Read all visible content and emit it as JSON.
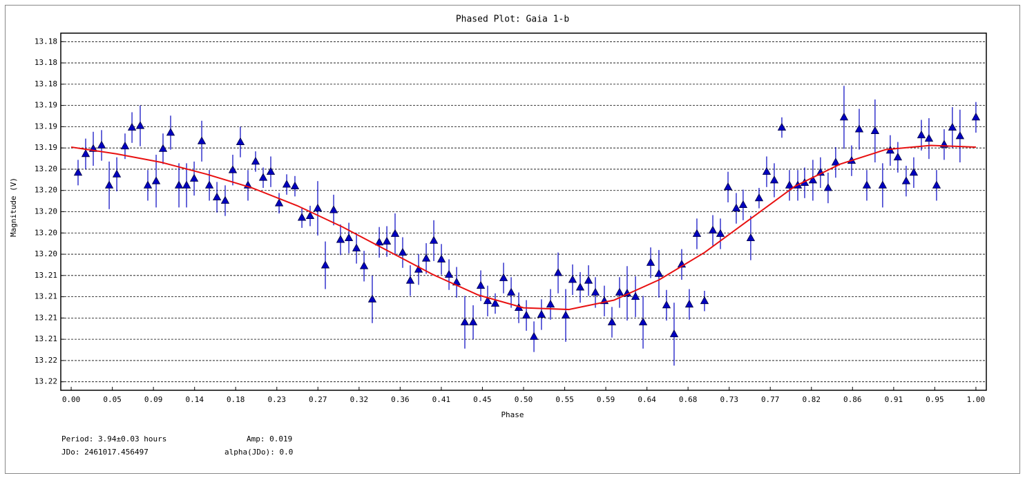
{
  "chart_data": {
    "type": "scatter",
    "title": "Phased Plot: Gaia 1-b",
    "xlabel": "Phase",
    "ylabel": "Magnitude (V)",
    "annotations": [
      "Period: 3.94±0.03 hours",
      "Amp: 0.019",
      "JDo: 2461017.456497",
      "alpha(JDo): 0.0"
    ],
    "xlim": [
      -0.0115,
      1.0115
    ],
    "ylim": [
      13.221,
      13.179
    ],
    "grid": true,
    "xticks": [
      {
        "value": 0,
        "label": "0.00"
      },
      {
        "value": 0.0455,
        "label": "0.05"
      },
      {
        "value": 0.0909,
        "label": "0.09"
      },
      {
        "value": 0.1364,
        "label": "0.14"
      },
      {
        "value": 0.1818,
        "label": "0.18"
      },
      {
        "value": 0.2273,
        "label": "0.23"
      },
      {
        "value": 0.2727,
        "label": "0.27"
      },
      {
        "value": 0.3182,
        "label": "0.32"
      },
      {
        "value": 0.3636,
        "label": "0.36"
      },
      {
        "value": 0.4091,
        "label": "0.41"
      },
      {
        "value": 0.4545,
        "label": "0.45"
      },
      {
        "value": 0.5,
        "label": "0.50"
      },
      {
        "value": 0.5455,
        "label": "0.55"
      },
      {
        "value": 0.5909,
        "label": "0.59"
      },
      {
        "value": 0.6364,
        "label": "0.64"
      },
      {
        "value": 0.6818,
        "label": "0.68"
      },
      {
        "value": 0.7273,
        "label": "0.73"
      },
      {
        "value": 0.7727,
        "label": "0.77"
      },
      {
        "value": 0.8182,
        "label": "0.82"
      },
      {
        "value": 0.8636,
        "label": "0.86"
      },
      {
        "value": 0.9091,
        "label": "0.91"
      },
      {
        "value": 0.9545,
        "label": "0.95"
      },
      {
        "value": 1,
        "label": "1.00"
      }
    ],
    "yticks": [
      {
        "value": 13.18,
        "label": "13.18"
      },
      {
        "value": 13.1825,
        "label": "13.18"
      },
      {
        "value": 13.185,
        "label": "13.18"
      },
      {
        "value": 13.1875,
        "label": "13.19"
      },
      {
        "value": 13.19,
        "label": "13.19"
      },
      {
        "value": 13.1925,
        "label": "13.19"
      },
      {
        "value": 13.195,
        "label": "13.20"
      },
      {
        "value": 13.1975,
        "label": "13.20"
      },
      {
        "value": 13.2,
        "label": "13.20"
      },
      {
        "value": 13.2025,
        "label": "13.20"
      },
      {
        "value": 13.205,
        "label": "13.20"
      },
      {
        "value": 13.2075,
        "label": "13.21"
      },
      {
        "value": 13.21,
        "label": "13.21"
      },
      {
        "value": 13.2125,
        "label": "13.21"
      },
      {
        "value": 13.215,
        "label": "13.21"
      },
      {
        "value": 13.2175,
        "label": "13.22"
      },
      {
        "value": 13.22,
        "label": "13.22"
      }
    ],
    "series": [
      {
        "color": "#0000c0",
        "x": [
          0.0076,
          0.016,
          0.0244,
          0.0336,
          0.042,
          0.0504,
          0.0595,
          0.0672,
          0.0763,
          0.0847,
          0.0939,
          0.1015,
          0.1099,
          0.1191,
          0.1275,
          0.1359,
          0.1443,
          0.1527,
          0.1611,
          0.1702,
          0.1786,
          0.187,
          0.1954,
          0.2038,
          0.2122,
          0.2206,
          0.2298,
          0.2382,
          0.2473,
          0.255,
          0.2641,
          0.2725,
          0.2809,
          0.2901,
          0.2977,
          0.3069,
          0.3153,
          0.3237,
          0.3328,
          0.3405,
          0.3489,
          0.358,
          0.3664,
          0.3748,
          0.384,
          0.3924,
          0.4008,
          0.4092,
          0.4176,
          0.426,
          0.4351,
          0.4443,
          0.4527,
          0.4603,
          0.4687,
          0.4779,
          0.4863,
          0.4947,
          0.5031,
          0.5115,
          0.5198,
          0.5298,
          0.5382,
          0.5466,
          0.5542,
          0.5626,
          0.5718,
          0.5794,
          0.5893,
          0.5977,
          0.6061,
          0.6145,
          0.6237,
          0.6321,
          0.6405,
          0.6496,
          0.658,
          0.6664,
          0.6748,
          0.6832,
          0.6916,
          0.7,
          0.7092,
          0.7176,
          0.726,
          0.7351,
          0.7427,
          0.7511,
          0.7603,
          0.7687,
          0.7771,
          0.7855,
          0.7939,
          0.8031,
          0.8107,
          0.8198,
          0.8282,
          0.8366,
          0.845,
          0.8542,
          0.8626,
          0.871,
          0.8794,
          0.8885,
          0.8969,
          0.9053,
          0.9137,
          0.9229,
          0.9313,
          0.9397,
          0.9481,
          0.9565,
          0.9649,
          0.974,
          0.9824,
          1.0
        ],
        "values": [
          13.1954,
          13.1932,
          13.1926,
          13.1922,
          13.1969,
          13.1956,
          13.1923,
          13.1901,
          13.1899,
          13.1969,
          13.1964,
          13.1926,
          13.1907,
          13.1969,
          13.1969,
          13.1961,
          13.1917,
          13.1969,
          13.1983,
          13.1987,
          13.1951,
          13.1918,
          13.1969,
          13.1941,
          13.196,
          13.1953,
          13.199,
          13.1968,
          13.197,
          13.2007,
          13.2005,
          13.1996,
          13.2063,
          13.1998,
          13.2033,
          13.2031,
          13.2043,
          13.2064,
          13.2103,
          13.2036,
          13.2035,
          13.2026,
          13.2048,
          13.2081,
          13.2068,
          13.2055,
          13.2034,
          13.2056,
          13.2074,
          13.2083,
          13.213,
          13.213,
          13.2087,
          13.2105,
          13.2108,
          13.2078,
          13.2095,
          13.2113,
          13.2122,
          13.2147,
          13.2121,
          13.2109,
          13.2072,
          13.2122,
          13.208,
          13.2089,
          13.2081,
          13.2095,
          13.2105,
          13.213,
          13.2095,
          13.2096,
          13.21,
          13.213,
          13.206,
          13.2073,
          13.211,
          13.2144,
          13.2062,
          13.2109,
          13.2026,
          13.2105,
          13.2022,
          13.2026,
          13.1971,
          13.1996,
          13.1992,
          13.2031,
          13.1984,
          13.1953,
          13.1963,
          13.1901,
          13.1969,
          13.1969,
          13.1966,
          13.1963,
          13.1954,
          13.1972,
          13.1942,
          13.1889,
          13.194,
          13.1903,
          13.1969,
          13.1905,
          13.1969,
          13.1928,
          13.1936,
          13.1964,
          13.1954,
          13.191,
          13.1914,
          13.1969,
          13.1921,
          13.1901,
          13.1911,
          13.1889
        ],
        "errors": [
          0.0015,
          0.0018,
          0.002,
          0.0018,
          0.0028,
          0.002,
          0.0015,
          0.0018,
          0.0024,
          0.0018,
          0.0031,
          0.0018,
          0.002,
          0.0026,
          0.0026,
          0.002,
          0.0024,
          0.0018,
          0.0018,
          0.0018,
          0.0018,
          0.0018,
          0.0018,
          0.0012,
          0.0012,
          0.0018,
          0.0012,
          0.0012,
          0.0012,
          0.0012,
          0.0012,
          0.0032,
          0.0028,
          0.0018,
          0.0018,
          0.0018,
          0.0018,
          0.0018,
          0.0028,
          0.0018,
          0.0018,
          0.0024,
          0.0018,
          0.0018,
          0.0018,
          0.0018,
          0.0024,
          0.0018,
          0.0018,
          0.0018,
          0.0031,
          0.002,
          0.0018,
          0.0018,
          0.0012,
          0.0018,
          0.0018,
          0.0018,
          0.0018,
          0.0018,
          0.0018,
          0.0018,
          0.0024,
          0.0031,
          0.0018,
          0.0018,
          0.0018,
          0.0018,
          0.0018,
          0.0018,
          0.0018,
          0.0032,
          0.0024,
          0.0031,
          0.0018,
          0.0028,
          0.0018,
          0.0037,
          0.0018,
          0.0018,
          0.0018,
          0.0012,
          0.0018,
          0.0018,
          0.0018,
          0.0018,
          0.0018,
          0.0026,
          0.0012,
          0.0018,
          0.002,
          0.0012,
          0.0018,
          0.0018,
          0.0018,
          0.0024,
          0.0018,
          0.0018,
          0.0018,
          0.0037,
          0.0018,
          0.0024,
          0.0018,
          0.0037,
          0.0026,
          0.0018,
          0.0018,
          0.0018,
          0.0018,
          0.0018,
          0.0024,
          0.0018,
          0.0018,
          0.0024,
          0.0031,
          0.0018
        ]
      }
    ],
    "fit": {
      "color": "#e81010",
      "x": [
        0,
        0.05,
        0.1,
        0.15,
        0.2,
        0.25,
        0.3,
        0.35,
        0.4,
        0.45,
        0.5,
        0.55,
        0.6,
        0.65,
        0.7,
        0.75,
        0.8,
        0.85,
        0.9,
        0.95,
        1.0
      ],
      "values": [
        13.1924,
        13.1932,
        13.1942,
        13.1956,
        13.1972,
        13.1993,
        13.2018,
        13.2046,
        13.2074,
        13.2098,
        13.2113,
        13.2115,
        13.2104,
        13.208,
        13.2048,
        13.2009,
        13.197,
        13.1944,
        13.1927,
        13.1922,
        13.1924
      ]
    }
  }
}
